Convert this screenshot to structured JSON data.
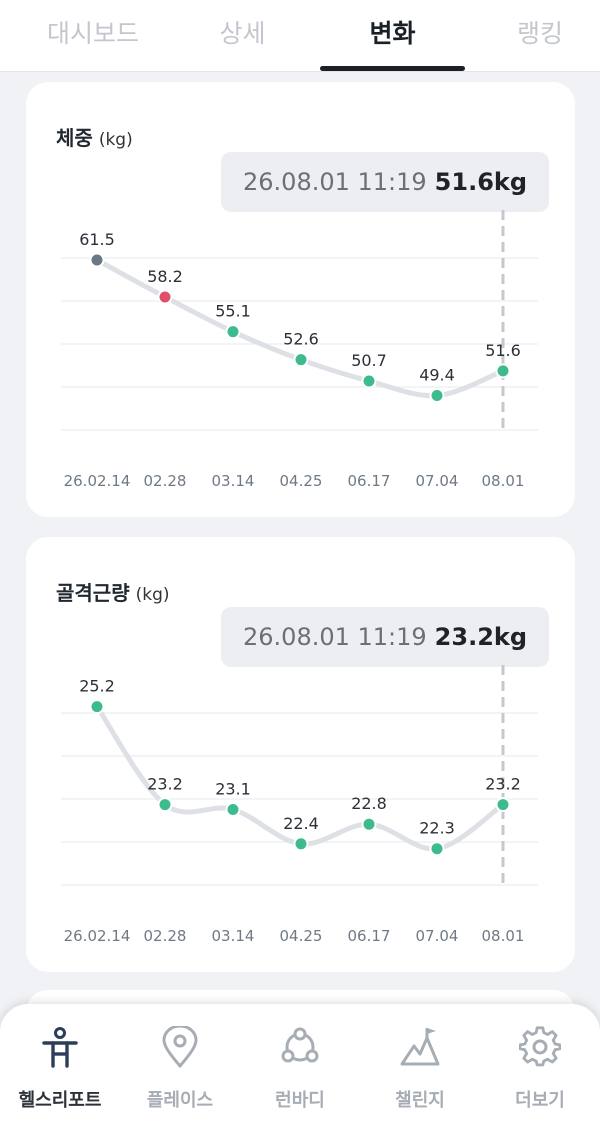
{
  "tabs": [
    {
      "label": "대시보드"
    },
    {
      "label": "상세"
    },
    {
      "label": "변화"
    },
    {
      "label": "랭킹"
    }
  ],
  "weight": {
    "title": "체중",
    "unit": "(kg)",
    "tooltip_time": "26.08.01 11:19",
    "tooltip_value": "51.6kg",
    "chart_data": {
      "type": "line",
      "categories": [
        "26.02.14",
        "02.28",
        "03.14",
        "04.25",
        "06.17",
        "07.04",
        "08.01"
      ],
      "values": [
        61.5,
        58.2,
        55.1,
        52.6,
        50.7,
        49.4,
        51.6
      ],
      "point_colors": [
        "#6b7686",
        "#e0506a",
        "#3dbb8c",
        "#3dbb8c",
        "#3dbb8c",
        "#3dbb8c",
        "#3dbb8c"
      ],
      "ylim": [
        46.5,
        64
      ],
      "grid": true,
      "selected_index": 6
    }
  },
  "muscle": {
    "title": "골격근량",
    "unit": "(kg)",
    "tooltip_time": "26.08.01 11:19",
    "tooltip_value": "23.2kg",
    "chart_data": {
      "type": "line",
      "categories": [
        "26.02.14",
        "02.28",
        "03.14",
        "04.25",
        "06.17",
        "07.04",
        "08.01"
      ],
      "values": [
        25.2,
        23.2,
        23.1,
        22.4,
        22.8,
        22.3,
        23.2
      ],
      "point_colors": [
        "#3dbb8c",
        "#3dbb8c",
        "#3dbb8c",
        "#3dbb8c",
        "#3dbb8c",
        "#3dbb8c",
        "#3dbb8c"
      ],
      "ylim": [
        21.6,
        25.6
      ],
      "grid": true,
      "selected_index": 6
    }
  },
  "nav": [
    {
      "label": "헬스리포트",
      "icon": "health-report-icon"
    },
    {
      "label": "플레이스",
      "icon": "location-pin-icon"
    },
    {
      "label": "런바디",
      "icon": "runbody-icon"
    },
    {
      "label": "챌린지",
      "icon": "mountain-flag-icon"
    },
    {
      "label": "더보기",
      "icon": "gear-icon"
    }
  ],
  "colors": {
    "accent_green": "#3dbb8c",
    "highlight_red": "#e0506a",
    "start_gray": "#6b7686",
    "line_gray": "#dde0e5"
  }
}
